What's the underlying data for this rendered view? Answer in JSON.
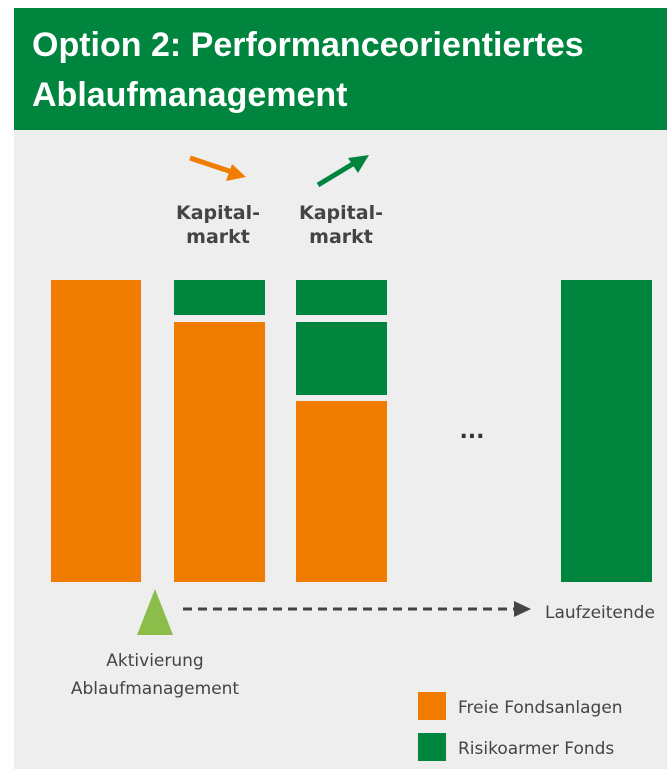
{
  "header": {
    "title": [
      "Option 2: Performanceorientiertes",
      "Ablaufmanagement"
    ]
  },
  "market_labels": [
    {
      "lines": [
        "Kapital-",
        "markt"
      ]
    },
    {
      "lines": [
        "Kapital-",
        "markt"
      ]
    }
  ],
  "ellipsis": "...",
  "activation": {
    "lines": [
      "Aktivierung",
      "Ablaufmanagement"
    ]
  },
  "end_label": "Laufzeitende",
  "legend": [
    {
      "label": "Freie Fondsanlagen",
      "color": "#f07d00"
    },
    {
      "label": "Risikoarmer Fonds",
      "color": "#00853e"
    }
  ]
}
